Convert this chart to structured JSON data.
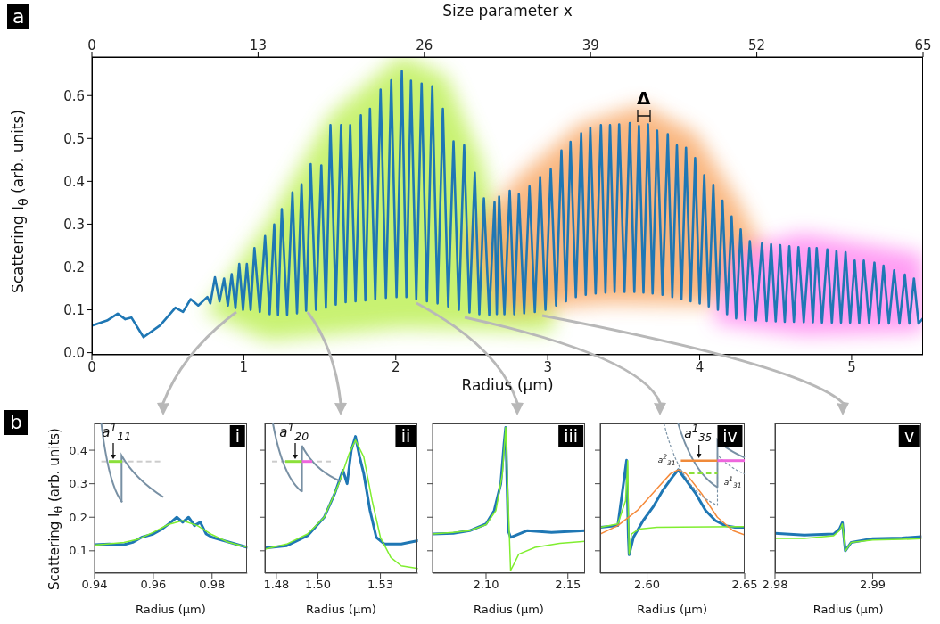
{
  "chart_data": [
    {
      "type": "line",
      "xlabel": "Radius (μm)",
      "x2label": "Size parameter x",
      "ylabel": "Scattering I$_{θ}$ (arb. units)",
      "xlim": [
        0,
        5.47
      ],
      "xticks": [
        0,
        1,
        2,
        3,
        4,
        5
      ],
      "x2lim": [
        0,
        65
      ],
      "x2ticks": [
        0,
        13,
        26,
        39,
        52,
        65
      ],
      "ylim": [
        -0.005,
        0.69
      ],
      "yticks": [
        {
          "value": 0,
          "label": "0.0"
        },
        0.1,
        0.2,
        0.3,
        0.4,
        0.5,
        0.6
      ],
      "series": [
        {
          "color": "#1f77b4",
          "x": [
            0.01,
            0.1,
            0.17,
            0.22,
            0.26,
            0.34,
            0.45,
            0.55,
            0.6,
            0.65,
            0.7,
            0.76,
            0.78,
            0.81,
            0.84,
            0.87,
            0.895,
            0.92,
            0.945,
            0.97,
            0.995,
            1.02,
            1.045,
            1.07,
            1.105,
            1.14,
            1.17,
            1.2,
            1.225,
            1.25,
            1.285,
            1.32,
            1.35,
            1.38,
            1.41,
            1.44,
            1.475,
            1.51,
            1.54,
            1.57,
            1.605,
            1.64,
            1.67,
            1.7,
            1.735,
            1.77,
            1.8,
            1.83,
            1.865,
            1.9,
            1.935,
            1.97,
            2.005,
            2.04,
            2.07,
            2.1,
            2.135,
            2.17,
            2.205,
            2.24,
            2.275,
            2.31,
            2.345,
            2.38,
            2.415,
            2.45,
            2.485,
            2.52,
            2.55,
            2.58,
            2.615,
            2.65,
            2.665,
            2.68,
            2.715,
            2.75,
            2.78,
            2.81,
            2.845,
            2.88,
            2.915,
            2.95,
            2.985,
            3.02,
            3.055,
            3.09,
            3.12,
            3.15,
            3.185,
            3.22,
            3.25,
            3.28,
            3.315,
            3.35,
            3.38,
            3.41,
            3.44,
            3.47,
            3.505,
            3.54,
            3.57,
            3.6,
            3.63,
            3.66,
            3.69,
            3.72,
            3.755,
            3.79,
            3.82,
            3.85,
            3.88,
            3.91,
            3.94,
            3.97,
            4.0,
            4.03,
            4.06,
            4.09,
            4.12,
            4.15,
            4.18,
            4.21,
            4.24,
            4.27,
            4.3,
            4.33,
            4.37,
            4.41,
            4.44,
            4.47,
            4.5,
            4.53,
            4.56,
            4.59,
            4.62,
            4.65,
            4.685,
            4.72,
            4.745,
            4.77,
            4.805,
            4.84,
            4.87,
            4.9,
            4.93,
            4.96,
            4.99,
            5.02,
            5.05,
            5.08,
            5.115,
            5.15,
            5.18,
            5.21,
            5.245,
            5.28,
            5.315,
            5.35,
            5.38,
            5.41,
            5.44,
            5.47
          ],
          "values": [
            0.064,
            0.075,
            0.091,
            0.078,
            0.082,
            0.036,
            0.064,
            0.105,
            0.095,
            0.125,
            0.11,
            0.13,
            0.115,
            0.176,
            0.12,
            0.173,
            0.11,
            0.183,
            0.104,
            0.207,
            0.1,
            0.207,
            0.1,
            0.244,
            0.095,
            0.272,
            0.09,
            0.299,
            0.088,
            0.335,
            0.088,
            0.374,
            0.092,
            0.393,
            0.098,
            0.44,
            0.1,
            0.437,
            0.105,
            0.531,
            0.112,
            0.531,
            0.118,
            0.531,
            0.12,
            0.554,
            0.122,
            0.569,
            0.125,
            0.614,
            0.128,
            0.636,
            0.13,
            0.657,
            0.13,
            0.635,
            0.125,
            0.628,
            0.12,
            0.622,
            0.115,
            0.569,
            0.108,
            0.493,
            0.1,
            0.484,
            0.094,
            0.42,
            0.09,
            0.36,
            0.088,
            0.351,
            0.09,
            0.364,
            0.09,
            0.378,
            0.09,
            0.37,
            0.092,
            0.388,
            0.095,
            0.41,
            0.1,
            0.428,
            0.11,
            0.472,
            0.12,
            0.492,
            0.13,
            0.512,
            0.135,
            0.525,
            0.138,
            0.531,
            0.14,
            0.531,
            0.142,
            0.533,
            0.142,
            0.536,
            0.142,
            0.529,
            0.14,
            0.533,
            0.138,
            0.518,
            0.135,
            0.51,
            0.13,
            0.484,
            0.125,
            0.478,
            0.12,
            0.454,
            0.115,
            0.414,
            0.108,
            0.392,
            0.1,
            0.355,
            0.09,
            0.318,
            0.08,
            0.288,
            0.077,
            0.26,
            0.075,
            0.255,
            0.074,
            0.253,
            0.073,
            0.251,
            0.072,
            0.248,
            0.072,
            0.246,
            0.071,
            0.244,
            0.071,
            0.244,
            0.07,
            0.241,
            0.07,
            0.237,
            0.07,
            0.234,
            0.07,
            0.215,
            0.069,
            0.215,
            0.069,
            0.21,
            0.068,
            0.203,
            0.068,
            0.192,
            0.068,
            0.182,
            0.068,
            0.173,
            0.068,
            0.08
          ]
        }
      ],
      "annotations": [
        "a",
        "Δ"
      ]
    },
    {
      "type": "line",
      "xlabel": "Radius (μm)",
      "ylabel": "Scattering I$_{θ}$ (arb. units)",
      "xlim": [
        0.94,
        0.992
      ],
      "xticks": [
        0.94,
        0.96,
        0.98
      ],
      "ylim": [
        0.033,
        0.48
      ],
      "yticks": [
        0.1,
        0.2,
        0.3,
        0.4
      ],
      "series": [
        {
          "color": "#1f77b4",
          "x": [
            0.94,
            0.945,
            0.95,
            0.953,
            0.956,
            0.96,
            0.963,
            0.966,
            0.968,
            0.97,
            0.972,
            0.974,
            0.976,
            0.978,
            0.98,
            0.984,
            0.988,
            0.992
          ],
          "values": [
            0.118,
            0.12,
            0.118,
            0.125,
            0.14,
            0.15,
            0.165,
            0.185,
            0.2,
            0.185,
            0.2,
            0.175,
            0.185,
            0.15,
            0.14,
            0.13,
            0.12,
            0.11
          ]
        },
        {
          "color": "#80ee30",
          "x": [
            0.94,
            0.95,
            0.955,
            0.96,
            0.965,
            0.97,
            0.975,
            0.98,
            0.985,
            0.99,
            0.992
          ],
          "values": [
            0.117,
            0.125,
            0.135,
            0.155,
            0.178,
            0.19,
            0.175,
            0.148,
            0.127,
            0.115,
            0.111
          ]
        }
      ],
      "annotations": [
        "b",
        "i",
        "a$^{1}$$_{11}$"
      ]
    },
    {
      "type": "line",
      "xlabel": "Radius (μm)",
      "xlim": [
        1.4745,
        1.548
      ],
      "xticks": [
        1.48,
        {
          "value": 1.5,
          "label": "1.50"
        },
        1.53
      ],
      "ylim": [
        0.033,
        0.48
      ],
      "yticks": [
        0.1,
        0.2,
        0.3,
        0.4
      ],
      "tick_labels": "x",
      "series": [
        {
          "color": "#1f77b4",
          "x": [
            1.4745,
            1.485,
            1.495,
            1.503,
            1.508,
            1.512,
            1.514,
            1.516,
            1.518,
            1.52,
            1.522,
            1.525,
            1.528,
            1.532,
            1.54,
            1.548
          ],
          "values": [
            0.108,
            0.115,
            0.145,
            0.2,
            0.27,
            0.34,
            0.3,
            0.4,
            0.441,
            0.38,
            0.33,
            0.22,
            0.14,
            0.12,
            0.12,
            0.13
          ]
        },
        {
          "color": "#80ee30",
          "x": [
            1.4745,
            1.485,
            1.495,
            1.503,
            1.51,
            1.515,
            1.518,
            1.522,
            1.526,
            1.53,
            1.535,
            1.54,
            1.548
          ],
          "values": [
            0.105,
            0.12,
            0.15,
            0.2,
            0.3,
            0.39,
            0.43,
            0.38,
            0.25,
            0.14,
            0.08,
            0.055,
            0.047
          ]
        }
      ],
      "annotations": [
        "ii",
        "a$^{1}$$_{20}$"
      ]
    },
    {
      "type": "line",
      "xlabel": "Radius (μm)",
      "xlim": [
        2.0673,
        2.1605
      ],
      "xticks": [
        {
          "value": 2.1,
          "label": "2.10"
        },
        2.15
      ],
      "ylim": [
        0.033,
        0.48
      ],
      "yticks": [
        0.1,
        0.2,
        0.3,
        0.4
      ],
      "tick_labels": "x",
      "series": [
        {
          "color": "#1f77b4",
          "x": [
            2.0673,
            2.08,
            2.09,
            2.1,
            2.105,
            2.109,
            2.111,
            2.112,
            2.1135,
            2.115,
            2.125,
            2.14,
            2.1605
          ],
          "values": [
            0.15,
            0.152,
            0.16,
            0.18,
            0.22,
            0.3,
            0.42,
            0.468,
            0.16,
            0.14,
            0.16,
            0.155,
            0.16
          ]
        },
        {
          "color": "#80ee30",
          "x": [
            2.0673,
            2.08,
            2.09,
            2.1,
            2.106,
            2.11,
            2.112,
            2.1135,
            2.115,
            2.117,
            2.12,
            2.13,
            2.145,
            2.1605
          ],
          "values": [
            0.15,
            0.155,
            0.16,
            0.178,
            0.22,
            0.33,
            0.468,
            0.25,
            0.041,
            0.06,
            0.09,
            0.11,
            0.122,
            0.128
          ]
        }
      ],
      "annotations": [
        "iii"
      ]
    },
    {
      "type": "line",
      "xlabel": "Radius (μm)",
      "xlim": [
        2.576,
        2.65
      ],
      "xticks": [
        {
          "value": 2.6,
          "label": "2.60"
        },
        2.65
      ],
      "ylim": [
        0.033,
        0.48
      ],
      "yticks": [
        0.1,
        0.2,
        0.3,
        0.4
      ],
      "tick_labels": "x",
      "series": [
        {
          "color": "#1f77b4",
          "x": [
            2.576,
            2.585,
            2.5895,
            2.5904,
            2.5908,
            2.593,
            2.598,
            2.603,
            2.608,
            2.613,
            2.616,
            2.62,
            2.625,
            2.63,
            2.635,
            2.64,
            2.645,
            2.65
          ],
          "values": [
            0.17,
            0.175,
            0.37,
            0.14,
            0.088,
            0.14,
            0.19,
            0.23,
            0.28,
            0.32,
            0.342,
            0.31,
            0.27,
            0.22,
            0.19,
            0.175,
            0.17,
            0.17
          ]
        },
        {
          "color": "#80ee30",
          "x": [
            2.576,
            2.585,
            2.589,
            2.5901,
            2.5904,
            2.5908,
            2.592,
            2.596,
            2.605,
            2.65
          ],
          "values": [
            0.17,
            0.18,
            0.25,
            0.369,
            0.2,
            0.089,
            0.15,
            0.165,
            0.17,
            0.172
          ]
        },
        {
          "color": "#f58a3a",
          "x": [
            2.576,
            2.585,
            2.595,
            2.605,
            2.612,
            2.616,
            2.62,
            2.628,
            2.636,
            2.644,
            2.65
          ],
          "values": [
            0.15,
            0.175,
            0.22,
            0.285,
            0.33,
            0.342,
            0.33,
            0.27,
            0.2,
            0.16,
            0.147
          ]
        }
      ],
      "annotations": [
        "iv",
        "a$^{1}$$_{35}$",
        "a$^{2}$$_{31}$",
        "a$^{1}$$_{31}$"
      ]
    },
    {
      "type": "line",
      "xlabel": "Radius (μm)",
      "xlim": [
        2.98,
        2.995
      ],
      "xticks": [
        2.98,
        2.99
      ],
      "ylim": [
        0.033,
        0.48
      ],
      "yticks": [
        0.1,
        0.2,
        0.3,
        0.4
      ],
      "tick_labels": "x",
      "series": [
        {
          "color": "#1f77b4",
          "x": [
            2.98,
            2.983,
            2.986,
            2.9866,
            2.9869,
            2.9872,
            2.9878,
            2.99,
            2.993,
            2.995
          ],
          "values": [
            0.152,
            0.147,
            0.15,
            0.165,
            0.184,
            0.1,
            0.125,
            0.136,
            0.138,
            0.142
          ]
        },
        {
          "color": "#80ee30",
          "x": [
            2.98,
            2.983,
            2.986,
            2.9866,
            2.9869,
            2.9872,
            2.9878,
            2.99,
            2.993,
            2.995
          ],
          "values": [
            0.137,
            0.137,
            0.145,
            0.16,
            0.18,
            0.099,
            0.125,
            0.132,
            0.134,
            0.136
          ]
        }
      ],
      "annotations": [
        "v"
      ]
    }
  ]
}
